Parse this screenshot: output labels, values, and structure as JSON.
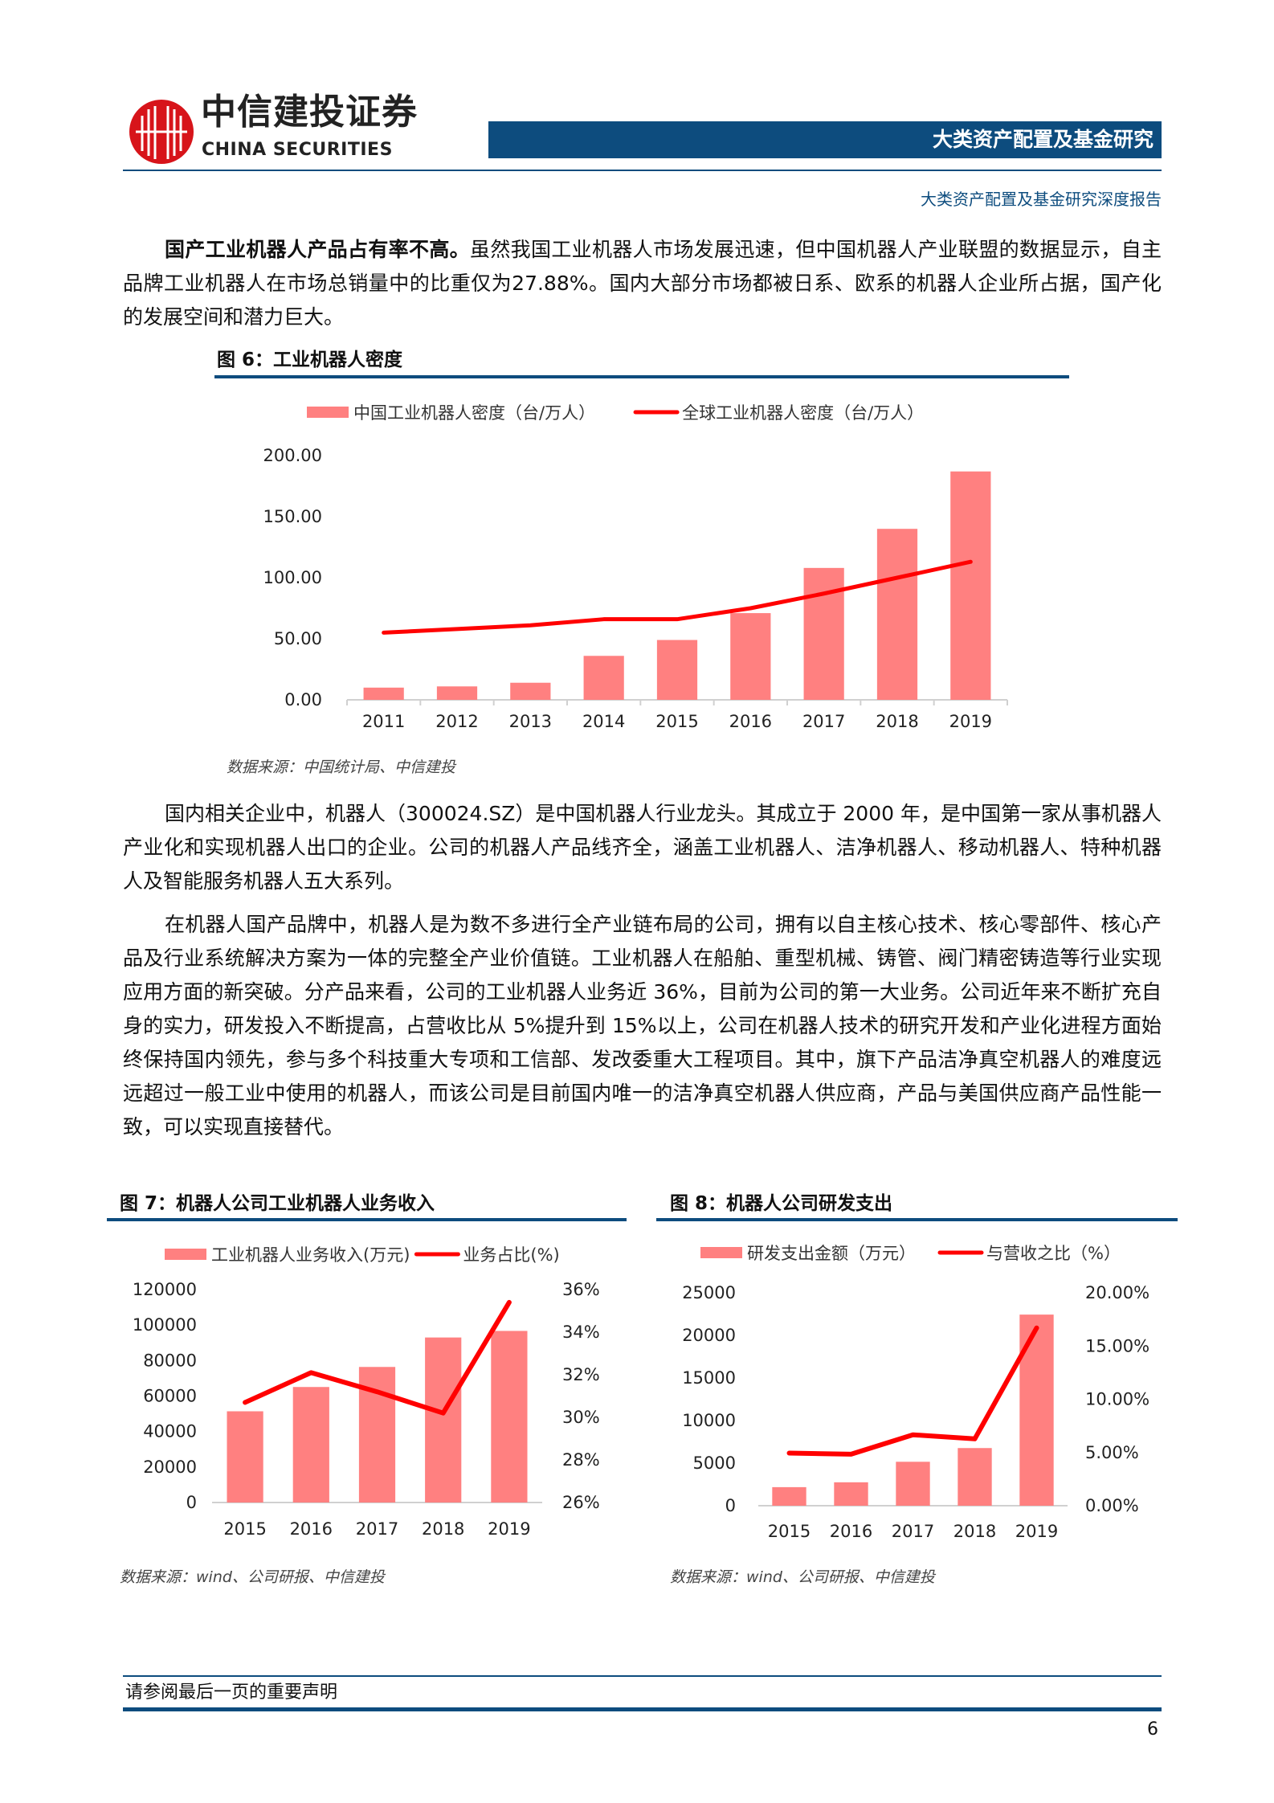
{
  "header": {
    "logo_cn": "中信建投证券",
    "logo_en": "CHINA SECURITIES",
    "bar_title": "大类资产配置及基金研究",
    "subtitle": "大类资产配置及基金研究深度报告"
  },
  "paragraphs": [
    {
      "bold": "国产工业机器人产品占有率不高。",
      "text": "虽然我国工业机器人市场发展迅速，但中国机器人产业联盟的数据显示，自主品牌工业机器人在市场总销量中的比重仅为27.88%。国内大部分市场都被日系、欧系的机器人企业所占据，国产化的发展空间和潜力巨大。"
    },
    {
      "bold": "",
      "text": "国内相关企业中，机器人（300024.SZ）是中国机器人行业龙头。其成立于 2000 年，是中国第一家从事机器人产业化和实现机器人出口的企业。公司的机器人产品线齐全，涵盖工业机器人、洁净机器人、移动机器人、特种机器人及智能服务机器人五大系列。"
    },
    {
      "bold": "",
      "text": "在机器人国产品牌中，机器人是为数不多进行全产业链布局的公司，拥有以自主核心技术、核心零部件、核心产品及行业系统解决方案为一体的完整全产业价值链。工业机器人在船舶、重型机械、铸管、阀门精密铸造等行业实现应用方面的新突破。分产品来看，公司的工业机器人业务近 36%，目前为公司的第一大业务。公司近年来不断扩充自身的实力，研发投入不断提高，占营收比从 5%提升到 15%以上，公司在机器人技术的研究开发和产业化进程方面始终保持国内领先，参与多个科技重大专项和工信部、发改委重大工程项目。其中，旗下产品洁净真空机器人的难度远远超过一般工业中使用的机器人，而该公司是目前国内唯一的洁净真空机器人供应商，产品与美国供应商产品性能一致，可以实现直接替代。"
    }
  ],
  "colors": {
    "bar": "#ff8080",
    "line": "#ff0000",
    "accent": "#0d4c7e"
  },
  "chart_data": [
    {
      "type": "bar",
      "title": "图 6：工业机器人密度",
      "source": "数据来源：中国统计局、中信建投",
      "categories": [
        "2011",
        "2012",
        "2013",
        "2014",
        "2015",
        "2016",
        "2017",
        "2018",
        "2019"
      ],
      "series": [
        {
          "name": "中国工业机器人密度（台/万人）",
          "kind": "bar",
          "axis": "left",
          "values": [
            10,
            11,
            14,
            36,
            49,
            71,
            108,
            140,
            187
          ]
        },
        {
          "name": "全球工业机器人密度（台/万人）",
          "kind": "line",
          "axis": "left",
          "values": [
            55,
            58,
            61,
            66,
            66,
            75,
            87,
            100,
            113
          ]
        }
      ],
      "ylim": [
        0,
        200
      ],
      "yticks": [
        "0.00",
        "50.00",
        "100.00",
        "150.00",
        "200.00"
      ],
      "legend": "top"
    },
    {
      "type": "bar",
      "title": "图 7：机器人公司工业机器人业务收入",
      "source": "数据来源：wind、公司研报、中信建投",
      "categories": [
        "2015",
        "2016",
        "2017",
        "2018",
        "2019"
      ],
      "series": [
        {
          "name": "工业机器人业务收入(万元)",
          "kind": "bar",
          "axis": "left",
          "values": [
            51400,
            65100,
            76400,
            93000,
            96700
          ]
        },
        {
          "name": "业务占比(%)",
          "kind": "line",
          "axis": "right",
          "values": [
            30.7,
            32.1,
            31.2,
            30.2,
            35.4
          ]
        }
      ],
      "ylim": [
        0,
        120000
      ],
      "yticks": [
        "0",
        "20000",
        "40000",
        "60000",
        "80000",
        "100000",
        "120000"
      ],
      "y2lim": [
        26,
        36
      ],
      "y2ticks": [
        "26%",
        "28%",
        "30%",
        "32%",
        "34%",
        "36%"
      ],
      "legend": "top"
    },
    {
      "type": "bar",
      "title": "图 8：机器人公司研发支出",
      "source": "数据来源：wind、公司研报、中信建投",
      "categories": [
        "2015",
        "2016",
        "2017",
        "2018",
        "2019"
      ],
      "series": [
        {
          "name": "研发支出金额（万元）",
          "kind": "bar",
          "axis": "left",
          "values": [
            2180,
            2750,
            5160,
            6770,
            22440
          ]
        },
        {
          "name": "与营收之比（%）",
          "kind": "line",
          "axis": "right",
          "values": [
            4.94,
            4.84,
            6.66,
            6.28,
            16.7
          ]
        }
      ],
      "ylim": [
        0,
        25000
      ],
      "yticks": [
        "0",
        "5000",
        "10000",
        "15000",
        "20000",
        "25000"
      ],
      "y2lim": [
        0,
        20
      ],
      "y2ticks": [
        "0.00%",
        "5.00%",
        "10.00%",
        "15.00%",
        "20.00%"
      ],
      "legend": "top"
    }
  ],
  "footer": {
    "disclaimer": "请参阅最后一页的重要声明",
    "page": "6"
  }
}
